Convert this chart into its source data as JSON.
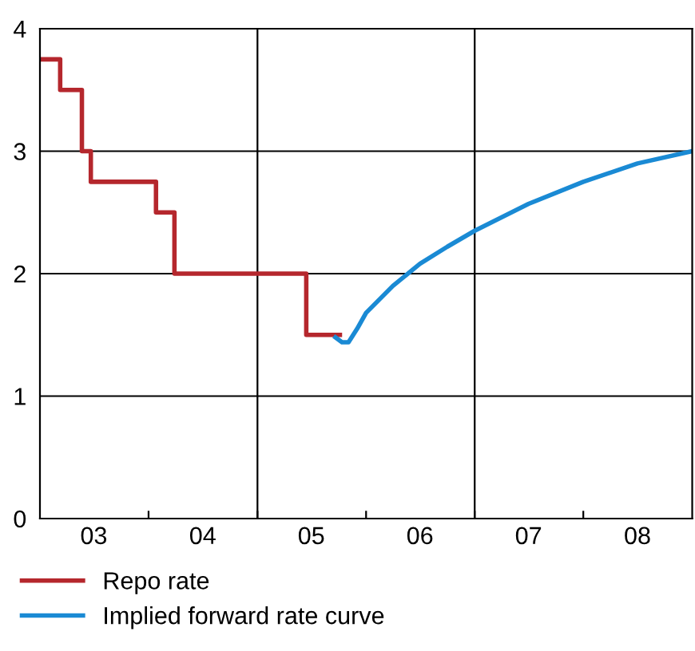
{
  "chart_data": {
    "type": "line",
    "x": [
      "2003-01-01",
      "2003-03-10",
      "2003-05-22",
      "2003-06-21",
      "2004-01-26",
      "2004-03-28",
      "2005-06-14",
      "2005-10-05"
    ],
    "series": [
      {
        "name": "Repo rate",
        "type": "step",
        "color": "#b5272d",
        "values": [
          3.75,
          3.5,
          3.0,
          2.75,
          2.5,
          2.0,
          1.5,
          1.5
        ]
      },
      {
        "name": "Implied forward rate curve",
        "color": "#1a8ad4",
        "x": [
          "2005-09-20",
          "2005-10-12",
          "2005-11-03",
          "2005-12-02",
          "2006-01-01",
          "2006-04-01",
          "2006-07-01",
          "2006-10-01",
          "2007-01-01",
          "2007-07-01",
          "2008-01-01",
          "2008-07-01",
          "2009-01-01"
        ],
        "values": [
          1.48,
          1.44,
          1.44,
          1.55,
          1.68,
          1.9,
          2.08,
          2.22,
          2.35,
          2.57,
          2.75,
          2.9,
          3.0
        ]
      }
    ],
    "xlim": [
      "2003-01-01",
      "2009-01-01"
    ],
    "xticks": [
      {
        "value": "2003-07-01",
        "label": "03"
      },
      {
        "value": "2004-01-01",
        "label": null
      },
      {
        "value": "2004-07-01",
        "label": "04"
      },
      {
        "value": "2005-01-01",
        "label": null
      },
      {
        "value": "2005-07-01",
        "label": "05"
      },
      {
        "value": "2006-01-01",
        "label": null
      },
      {
        "value": "2006-07-01",
        "label": "06"
      },
      {
        "value": "2007-01-01",
        "label": null
      },
      {
        "value": "2007-07-01",
        "label": "07"
      },
      {
        "value": "2008-01-01",
        "label": null
      },
      {
        "value": "2008-07-01",
        "label": "08"
      }
    ],
    "ylim": [
      0,
      4
    ],
    "yticks": [
      0,
      1,
      2,
      3,
      4
    ],
    "grid": "y",
    "ref_lines": [
      {
        "axis": "x",
        "value": "2005-01-01",
        "label": null,
        "color": "#000000"
      },
      {
        "axis": "x",
        "value": "2007-01-01",
        "label": null,
        "color": "#000000"
      }
    ],
    "legend": "bottom"
  }
}
